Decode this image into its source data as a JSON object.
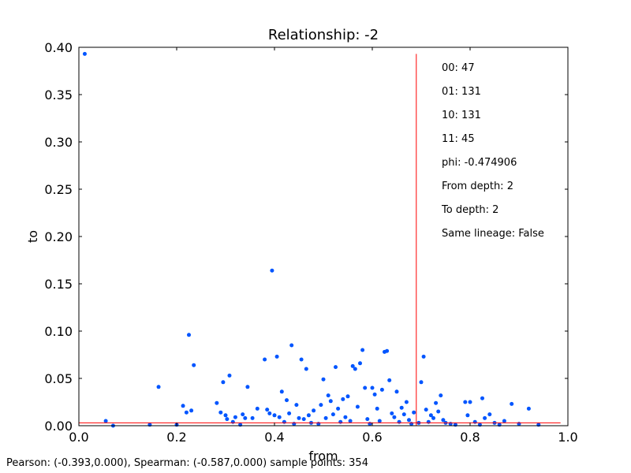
{
  "chart_data": {
    "type": "scatter",
    "title": "Relationship: -2",
    "xlabel": "from",
    "ylabel": "to",
    "xlim": [
      0.0,
      1.0
    ],
    "ylim": [
      0.0,
      0.4
    ],
    "x_ticks": [
      0.0,
      0.2,
      0.4,
      0.6,
      0.8,
      1.0
    ],
    "x_tick_labels": [
      "0.0",
      "0.2",
      "0.4",
      "0.6",
      "0.8",
      "1.0"
    ],
    "y_ticks": [
      0.0,
      0.05,
      0.1,
      0.15,
      0.2,
      0.25,
      0.3,
      0.35,
      0.4
    ],
    "y_tick_labels": [
      "0.00",
      "0.05",
      "0.10",
      "0.15",
      "0.20",
      "0.25",
      "0.30",
      "0.35",
      "0.40"
    ],
    "grid": false,
    "point_color": "#0055ff",
    "threshold_color": "#ff0000",
    "x_threshold": 0.69,
    "y_threshold": 0.003,
    "annotations": [
      "00: 47",
      "01: 131",
      "10: 131",
      "11: 45",
      "phi: -0.474906",
      "From depth: 2",
      "To depth: 2",
      "Same lineage: False"
    ],
    "points": [
      [
        0.012,
        0.393
      ],
      [
        0.055,
        0.005
      ],
      [
        0.07,
        0.0
      ],
      [
        0.145,
        0.001
      ],
      [
        0.163,
        0.041
      ],
      [
        0.2,
        0.001
      ],
      [
        0.213,
        0.021
      ],
      [
        0.22,
        0.014
      ],
      [
        0.225,
        0.096
      ],
      [
        0.23,
        0.016
      ],
      [
        0.235,
        0.064
      ],
      [
        0.282,
        0.024
      ],
      [
        0.29,
        0.014
      ],
      [
        0.295,
        0.046
      ],
      [
        0.3,
        0.011
      ],
      [
        0.303,
        0.007
      ],
      [
        0.308,
        0.053
      ],
      [
        0.315,
        0.004
      ],
      [
        0.32,
        0.009
      ],
      [
        0.33,
        0.001
      ],
      [
        0.335,
        0.012
      ],
      [
        0.34,
        0.008
      ],
      [
        0.345,
        0.041
      ],
      [
        0.355,
        0.008
      ],
      [
        0.365,
        0.018
      ],
      [
        0.38,
        0.07
      ],
      [
        0.385,
        0.017
      ],
      [
        0.39,
        0.013
      ],
      [
        0.395,
        0.164
      ],
      [
        0.4,
        0.011
      ],
      [
        0.405,
        0.073
      ],
      [
        0.41,
        0.009
      ],
      [
        0.415,
        0.036
      ],
      [
        0.42,
        0.004
      ],
      [
        0.425,
        0.027
      ],
      [
        0.43,
        0.013
      ],
      [
        0.435,
        0.085
      ],
      [
        0.44,
        0.002
      ],
      [
        0.445,
        0.022
      ],
      [
        0.45,
        0.008
      ],
      [
        0.455,
        0.07
      ],
      [
        0.46,
        0.007
      ],
      [
        0.465,
        0.06
      ],
      [
        0.47,
        0.011
      ],
      [
        0.475,
        0.003
      ],
      [
        0.48,
        0.016
      ],
      [
        0.49,
        0.002
      ],
      [
        0.495,
        0.022
      ],
      [
        0.5,
        0.049
      ],
      [
        0.505,
        0.008
      ],
      [
        0.51,
        0.032
      ],
      [
        0.515,
        0.026
      ],
      [
        0.52,
        0.012
      ],
      [
        0.525,
        0.062
      ],
      [
        0.53,
        0.018
      ],
      [
        0.535,
        0.004
      ],
      [
        0.54,
        0.028
      ],
      [
        0.545,
        0.009
      ],
      [
        0.55,
        0.031
      ],
      [
        0.555,
        0.005
      ],
      [
        0.56,
        0.063
      ],
      [
        0.565,
        0.06
      ],
      [
        0.57,
        0.02
      ],
      [
        0.575,
        0.066
      ],
      [
        0.58,
        0.08
      ],
      [
        0.585,
        0.04
      ],
      [
        0.59,
        0.007
      ],
      [
        0.595,
        0.002
      ],
      [
        0.6,
        0.04
      ],
      [
        0.605,
        0.033
      ],
      [
        0.61,
        0.018
      ],
      [
        0.615,
        0.005
      ],
      [
        0.62,
        0.038
      ],
      [
        0.625,
        0.078
      ],
      [
        0.63,
        0.079
      ],
      [
        0.635,
        0.048
      ],
      [
        0.64,
        0.013
      ],
      [
        0.645,
        0.009
      ],
      [
        0.65,
        0.036
      ],
      [
        0.655,
        0.004
      ],
      [
        0.66,
        0.019
      ],
      [
        0.665,
        0.012
      ],
      [
        0.67,
        0.025
      ],
      [
        0.675,
        0.006
      ],
      [
        0.68,
        0.002
      ],
      [
        0.685,
        0.014
      ],
      [
        0.695,
        0.003
      ],
      [
        0.7,
        0.046
      ],
      [
        0.705,
        0.073
      ],
      [
        0.71,
        0.017
      ],
      [
        0.715,
        0.004
      ],
      [
        0.72,
        0.011
      ],
      [
        0.725,
        0.008
      ],
      [
        0.73,
        0.024
      ],
      [
        0.735,
        0.015
      ],
      [
        0.74,
        0.032
      ],
      [
        0.745,
        0.006
      ],
      [
        0.75,
        0.003
      ],
      [
        0.76,
        0.002
      ],
      [
        0.77,
        0.001
      ],
      [
        0.79,
        0.025
      ],
      [
        0.795,
        0.011
      ],
      [
        0.8,
        0.025
      ],
      [
        0.81,
        0.004
      ],
      [
        0.82,
        0.001
      ],
      [
        0.825,
        0.029
      ],
      [
        0.83,
        0.008
      ],
      [
        0.84,
        0.012
      ],
      [
        0.85,
        0.003
      ],
      [
        0.86,
        0.001
      ],
      [
        0.87,
        0.005
      ],
      [
        0.885,
        0.023
      ],
      [
        0.9,
        0.002
      ],
      [
        0.92,
        0.018
      ],
      [
        0.94,
        0.001
      ]
    ]
  },
  "footer": "Pearson: (-0.393,0.000), Spearman: (-0.587,0.000) sample points: 354"
}
